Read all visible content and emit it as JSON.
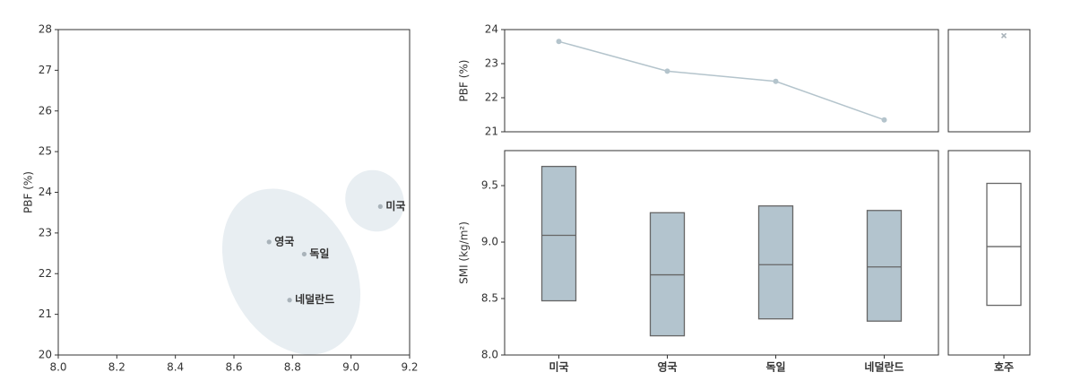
{
  "chart_data": [
    {
      "type": "scatter",
      "ylabel": "PBF (%)",
      "xlim": [
        8.0,
        9.2
      ],
      "xticks": [
        {
          "value": 8.0,
          "label": "8.0"
        },
        8.2,
        8.4,
        8.6,
        8.8,
        {
          "value": 9.0,
          "label": "9.0"
        },
        9.2
      ],
      "ylim": [
        20,
        28
      ],
      "yticks": [
        20,
        21,
        22,
        23,
        24,
        25,
        26,
        27,
        28
      ],
      "color": "#a9b3ba",
      "points": [
        {
          "label": "미국",
          "x": 9.1,
          "y": 23.65
        },
        {
          "label": "영국",
          "x": 8.72,
          "y": 22.78
        },
        {
          "label": "독일",
          "x": 8.84,
          "y": 22.48
        },
        {
          "label": "네덜란드",
          "x": 8.79,
          "y": 21.35
        }
      ]
    },
    {
      "type": "line",
      "ylabel": "PBF (%)",
      "categories": [
        "미국",
        "영국",
        "독일",
        "네덜란드"
      ],
      "values": [
        23.65,
        22.78,
        22.48,
        21.35
      ],
      "color": "#b4c4cc",
      "ylim": [
        21,
        24
      ],
      "yticks": [
        21,
        22,
        23,
        24
      ]
    },
    {
      "type": "marker",
      "values": [
        23.82
      ],
      "color": "#a9b3ba",
      "ylim": [
        21,
        24
      ]
    },
    {
      "type": "box",
      "ylabel": "SMI (kg/m²)",
      "categories": [
        "미국",
        "영국",
        "독일",
        "네덜란드"
      ],
      "boxes": [
        {
          "low": 8.48,
          "median": 9.06,
          "high": 9.67
        },
        {
          "low": 8.17,
          "median": 8.71,
          "high": 9.26
        },
        {
          "low": 8.32,
          "median": 8.8,
          "high": 9.32
        },
        {
          "low": 8.3,
          "median": 8.78,
          "high": 9.28
        }
      ],
      "color": "#b3c4ce",
      "ylim": [
        8.0,
        9.81
      ],
      "yticks": [
        {
          "value": 8.0,
          "label": "8.0"
        },
        8.5,
        {
          "value": 9.0,
          "label": "9.0"
        },
        9.5
      ]
    },
    {
      "type": "box",
      "categories": [
        "호주"
      ],
      "boxes": [
        {
          "low": 8.44,
          "median": 8.96,
          "high": 9.52
        }
      ],
      "color": "#ffffff",
      "ylim": [
        8.0,
        9.81
      ]
    }
  ]
}
